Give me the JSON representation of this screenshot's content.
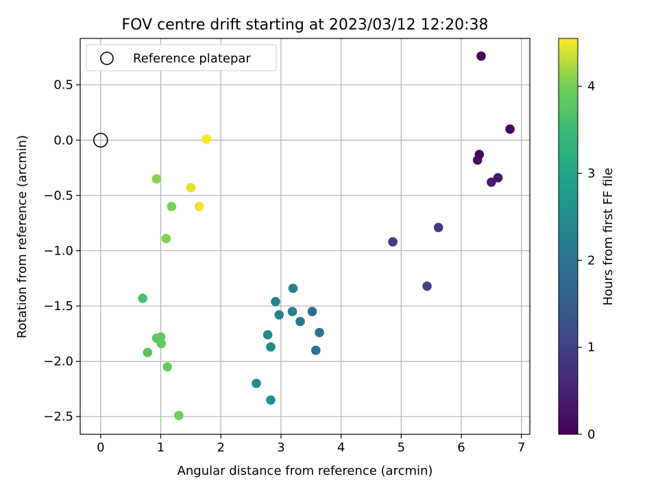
{
  "chart_data": {
    "type": "scatter",
    "title": "FOV centre drift starting at 2023/03/12 12:20:38",
    "xlabel": "Angular distance from reference (arcmin)",
    "ylabel": "Rotation from reference (arcmin)",
    "xlim": [
      -0.34,
      7.14
    ],
    "ylim": [
      -2.66,
      0.92
    ],
    "xticks": [
      0,
      1,
      2,
      3,
      4,
      5,
      6,
      7
    ],
    "xtick_labels": [
      "0",
      "1",
      "2",
      "3",
      "4",
      "5",
      "6",
      "7"
    ],
    "yticks": [
      0.5,
      0.0,
      -0.5,
      -1.0,
      -1.5,
      -2.0,
      -2.5
    ],
    "ytick_labels": [
      "0.5",
      "0.0",
      "−0.5",
      "−1.0",
      "−1.5",
      "−2.0",
      "−2.5"
    ],
    "grid": true,
    "legend": {
      "placement": "top-left",
      "entries": [
        "Reference platepar"
      ]
    },
    "reference_point": {
      "x": 0.0,
      "y": 0.0,
      "marker": "hollow-circle"
    },
    "colorbar": {
      "label": "Hours from first FF file",
      "colormap": "viridis",
      "range": [
        0,
        4.55
      ],
      "ticks": [
        0,
        1,
        2,
        3,
        4
      ],
      "tick_labels": [
        "0",
        "1",
        "2",
        "3",
        "4"
      ]
    },
    "points": [
      {
        "x": 6.33,
        "y": 0.76,
        "hours": 0.0
      },
      {
        "x": 6.81,
        "y": 0.1,
        "hours": 0.08
      },
      {
        "x": 6.3,
        "y": -0.13,
        "hours": 0.15
      },
      {
        "x": 6.27,
        "y": -0.18,
        "hours": 0.22
      },
      {
        "x": 6.61,
        "y": -0.34,
        "hours": 0.3
      },
      {
        "x": 6.5,
        "y": -0.38,
        "hours": 0.37
      },
      {
        "x": 5.62,
        "y": -0.79,
        "hours": 0.82
      },
      {
        "x": 4.86,
        "y": -0.92,
        "hours": 0.92
      },
      {
        "x": 5.43,
        "y": -1.32,
        "hours": 1.02
      },
      {
        "x": 3.52,
        "y": -1.55,
        "hours": 1.85
      },
      {
        "x": 3.64,
        "y": -1.74,
        "hours": 1.92
      },
      {
        "x": 3.58,
        "y": -1.9,
        "hours": 2.0
      },
      {
        "x": 3.32,
        "y": -1.64,
        "hours": 2.05
      },
      {
        "x": 3.2,
        "y": -1.34,
        "hours": 2.12
      },
      {
        "x": 3.19,
        "y": -1.55,
        "hours": 2.18
      },
      {
        "x": 2.97,
        "y": -1.58,
        "hours": 2.25
      },
      {
        "x": 2.91,
        "y": -1.46,
        "hours": 2.3
      },
      {
        "x": 2.78,
        "y": -1.76,
        "hours": 2.38
      },
      {
        "x": 2.83,
        "y": -1.87,
        "hours": 2.43
      },
      {
        "x": 2.59,
        "y": -2.2,
        "hours": 2.5
      },
      {
        "x": 2.83,
        "y": -2.35,
        "hours": 2.57
      },
      {
        "x": 0.7,
        "y": -1.43,
        "hours": 3.6
      },
      {
        "x": 0.78,
        "y": -1.92,
        "hours": 3.75
      },
      {
        "x": 0.93,
        "y": -1.79,
        "hours": 3.82
      },
      {
        "x": 1.0,
        "y": -1.78,
        "hours": 3.85
      },
      {
        "x": 1.01,
        "y": -1.84,
        "hours": 3.88
      },
      {
        "x": 1.11,
        "y": -2.05,
        "hours": 3.92
      },
      {
        "x": 1.3,
        "y": -2.49,
        "hours": 3.95
      },
      {
        "x": 1.18,
        "y": -0.6,
        "hours": 4.02
      },
      {
        "x": 1.09,
        "y": -0.89,
        "hours": 4.05
      },
      {
        "x": 0.93,
        "y": -0.35,
        "hours": 4.08
      },
      {
        "x": 1.5,
        "y": -0.43,
        "hours": 4.45
      },
      {
        "x": 1.64,
        "y": -0.6,
        "hours": 4.5
      },
      {
        "x": 1.76,
        "y": 0.01,
        "hours": 4.55
      }
    ]
  }
}
